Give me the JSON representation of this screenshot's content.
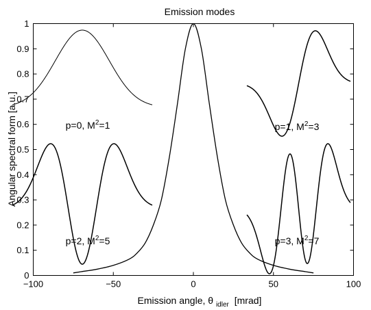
{
  "chart_data": {
    "type": "line",
    "title": "Emission modes",
    "xlabel": {
      "main": "Emission angle, θ",
      "subscript": "idler",
      "unit": "[mrad]"
    },
    "ylabel": "Angular spectral form [a.u.]",
    "xlim": [
      -100,
      100
    ],
    "ylim": [
      0,
      1
    ],
    "xticks": [
      -100,
      -50,
      0,
      50,
      100
    ],
    "xtick_labels": [
      "−100",
      "−50",
      "0",
      "50",
      "100"
    ],
    "yticks": [
      0,
      0.1,
      0.2,
      0.3,
      0.4,
      0.5,
      0.6,
      0.7,
      0.8,
      0.9,
      1
    ],
    "ytick_labels": [
      "0",
      "0.1",
      "0.2",
      "0.3",
      "0.4",
      "0.5",
      "0.6",
      "0.7",
      "0.8",
      "0.9",
      "1"
    ],
    "grid": false,
    "series": [
      {
        "x": [
          -75,
          -70,
          -60,
          -50,
          -40,
          -35,
          -30,
          -25,
          -20,
          -15,
          -10,
          -5,
          0,
          5,
          10,
          15,
          20,
          25,
          30,
          35,
          40,
          50,
          60,
          70,
          75
        ],
        "y": [
          0.01,
          0.015,
          0.025,
          0.04,
          0.065,
          0.09,
          0.13,
          0.2,
          0.3,
          0.47,
          0.68,
          0.9,
          1.0,
          0.9,
          0.68,
          0.47,
          0.3,
          0.2,
          0.13,
          0.09,
          0.065,
          0.04,
          0.025,
          0.015,
          0.01
        ]
      }
    ],
    "insets": [
      {
        "label_main": "p=0, M",
        "label_sup": "2",
        "label_end": "=1",
        "p": 0
      },
      {
        "label_main": "p=1, M",
        "label_sup": "2",
        "label_end": "=3",
        "p": 1
      },
      {
        "label_main": "p=2, M",
        "label_sup": "2",
        "label_end": "=5",
        "p": 2
      },
      {
        "label_main": "p=3, M",
        "label_sup": "2",
        "label_end": "=7",
        "p": 3
      }
    ]
  }
}
